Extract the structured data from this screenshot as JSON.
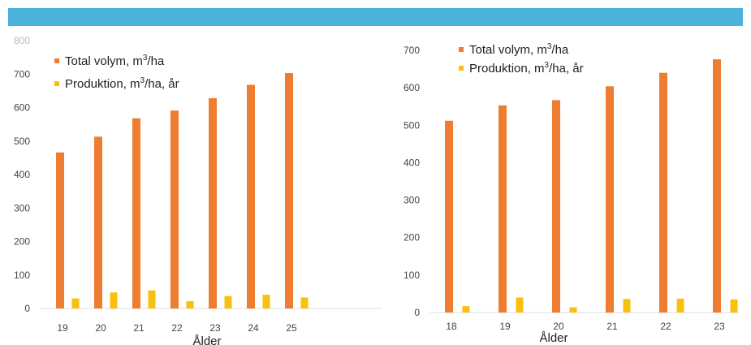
{
  "colors": {
    "banner": "#4bb2dc",
    "total": "#ee7d31",
    "produktion": "#f9c10e"
  },
  "chart_data": [
    {
      "type": "bar",
      "categories": [
        "19",
        "20",
        "21",
        "22",
        "23",
        "24",
        "25"
      ],
      "series": [
        {
          "name": "Total volym, m³/ha",
          "values": [
            466,
            513,
            568,
            591,
            628,
            668,
            703
          ]
        },
        {
          "name": "Produktion, m³/ha, år",
          "values": [
            30,
            48,
            54,
            22,
            37,
            41,
            33
          ]
        }
      ],
      "xlabel": "Ålder",
      "ylabel": "",
      "ylim": [
        0,
        800
      ],
      "yticks": [
        0,
        100,
        200,
        300,
        400,
        500,
        600,
        700,
        800
      ],
      "ytick_labels": [
        "0",
        "100",
        "200",
        "300",
        "400",
        "500",
        "600",
        "700",
        "800"
      ],
      "legend": "top-left",
      "grid": false
    },
    {
      "type": "bar",
      "categories": [
        "18",
        "19",
        "20",
        "21",
        "22",
        "23"
      ],
      "series": [
        {
          "name": "Total volym, m³/ha",
          "values": [
            512,
            553,
            567,
            604,
            640,
            676
          ]
        },
        {
          "name": "Produktion, m³/ha, år",
          "values": [
            17,
            40,
            14,
            36,
            37,
            35
          ]
        }
      ],
      "xlabel": "Ålder",
      "ylabel": "",
      "ylim": [
        0,
        700
      ],
      "yticks": [
        0,
        100,
        200,
        300,
        400,
        500,
        600,
        700
      ],
      "ytick_labels": [
        "0",
        "100",
        "200",
        "300",
        "400",
        "500",
        "600",
        "700"
      ],
      "legend": "top-left",
      "grid": false
    }
  ]
}
